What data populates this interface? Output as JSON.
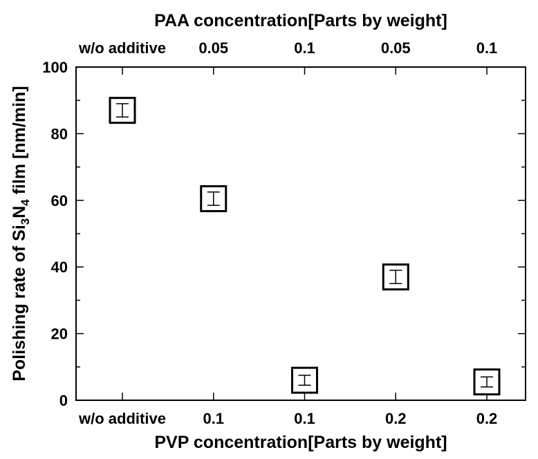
{
  "chart_data": {
    "type": "scatter",
    "title": "",
    "xlabel": "PVP concentration[Parts by weight]",
    "x2label": "PAA concentration[Parts by weight]",
    "ylabel": {
      "prefix": "Polishing rate of Si",
      "sub1": "3",
      "mid": "N",
      "sub2": "4",
      "suffix": " film [nm/min]"
    },
    "categories": [
      "1",
      "2",
      "3",
      "4",
      "5"
    ],
    "x_tick_labels": [
      "w/o additive",
      "0.1",
      "0.1",
      "0.2",
      "0.2"
    ],
    "x2_tick_labels": [
      "w/o additive",
      "0.05",
      "0.1",
      "0.05",
      "0.1"
    ],
    "ylim": [
      0,
      100
    ],
    "yticks": [
      0,
      20,
      40,
      60,
      80,
      100
    ],
    "series": [
      {
        "values": [
          87,
          60.5,
          6,
          37,
          5.5
        ],
        "error": [
          2,
          2,
          1.5,
          2,
          1.5
        ]
      }
    ],
    "grid": false,
    "legend": "none"
  }
}
